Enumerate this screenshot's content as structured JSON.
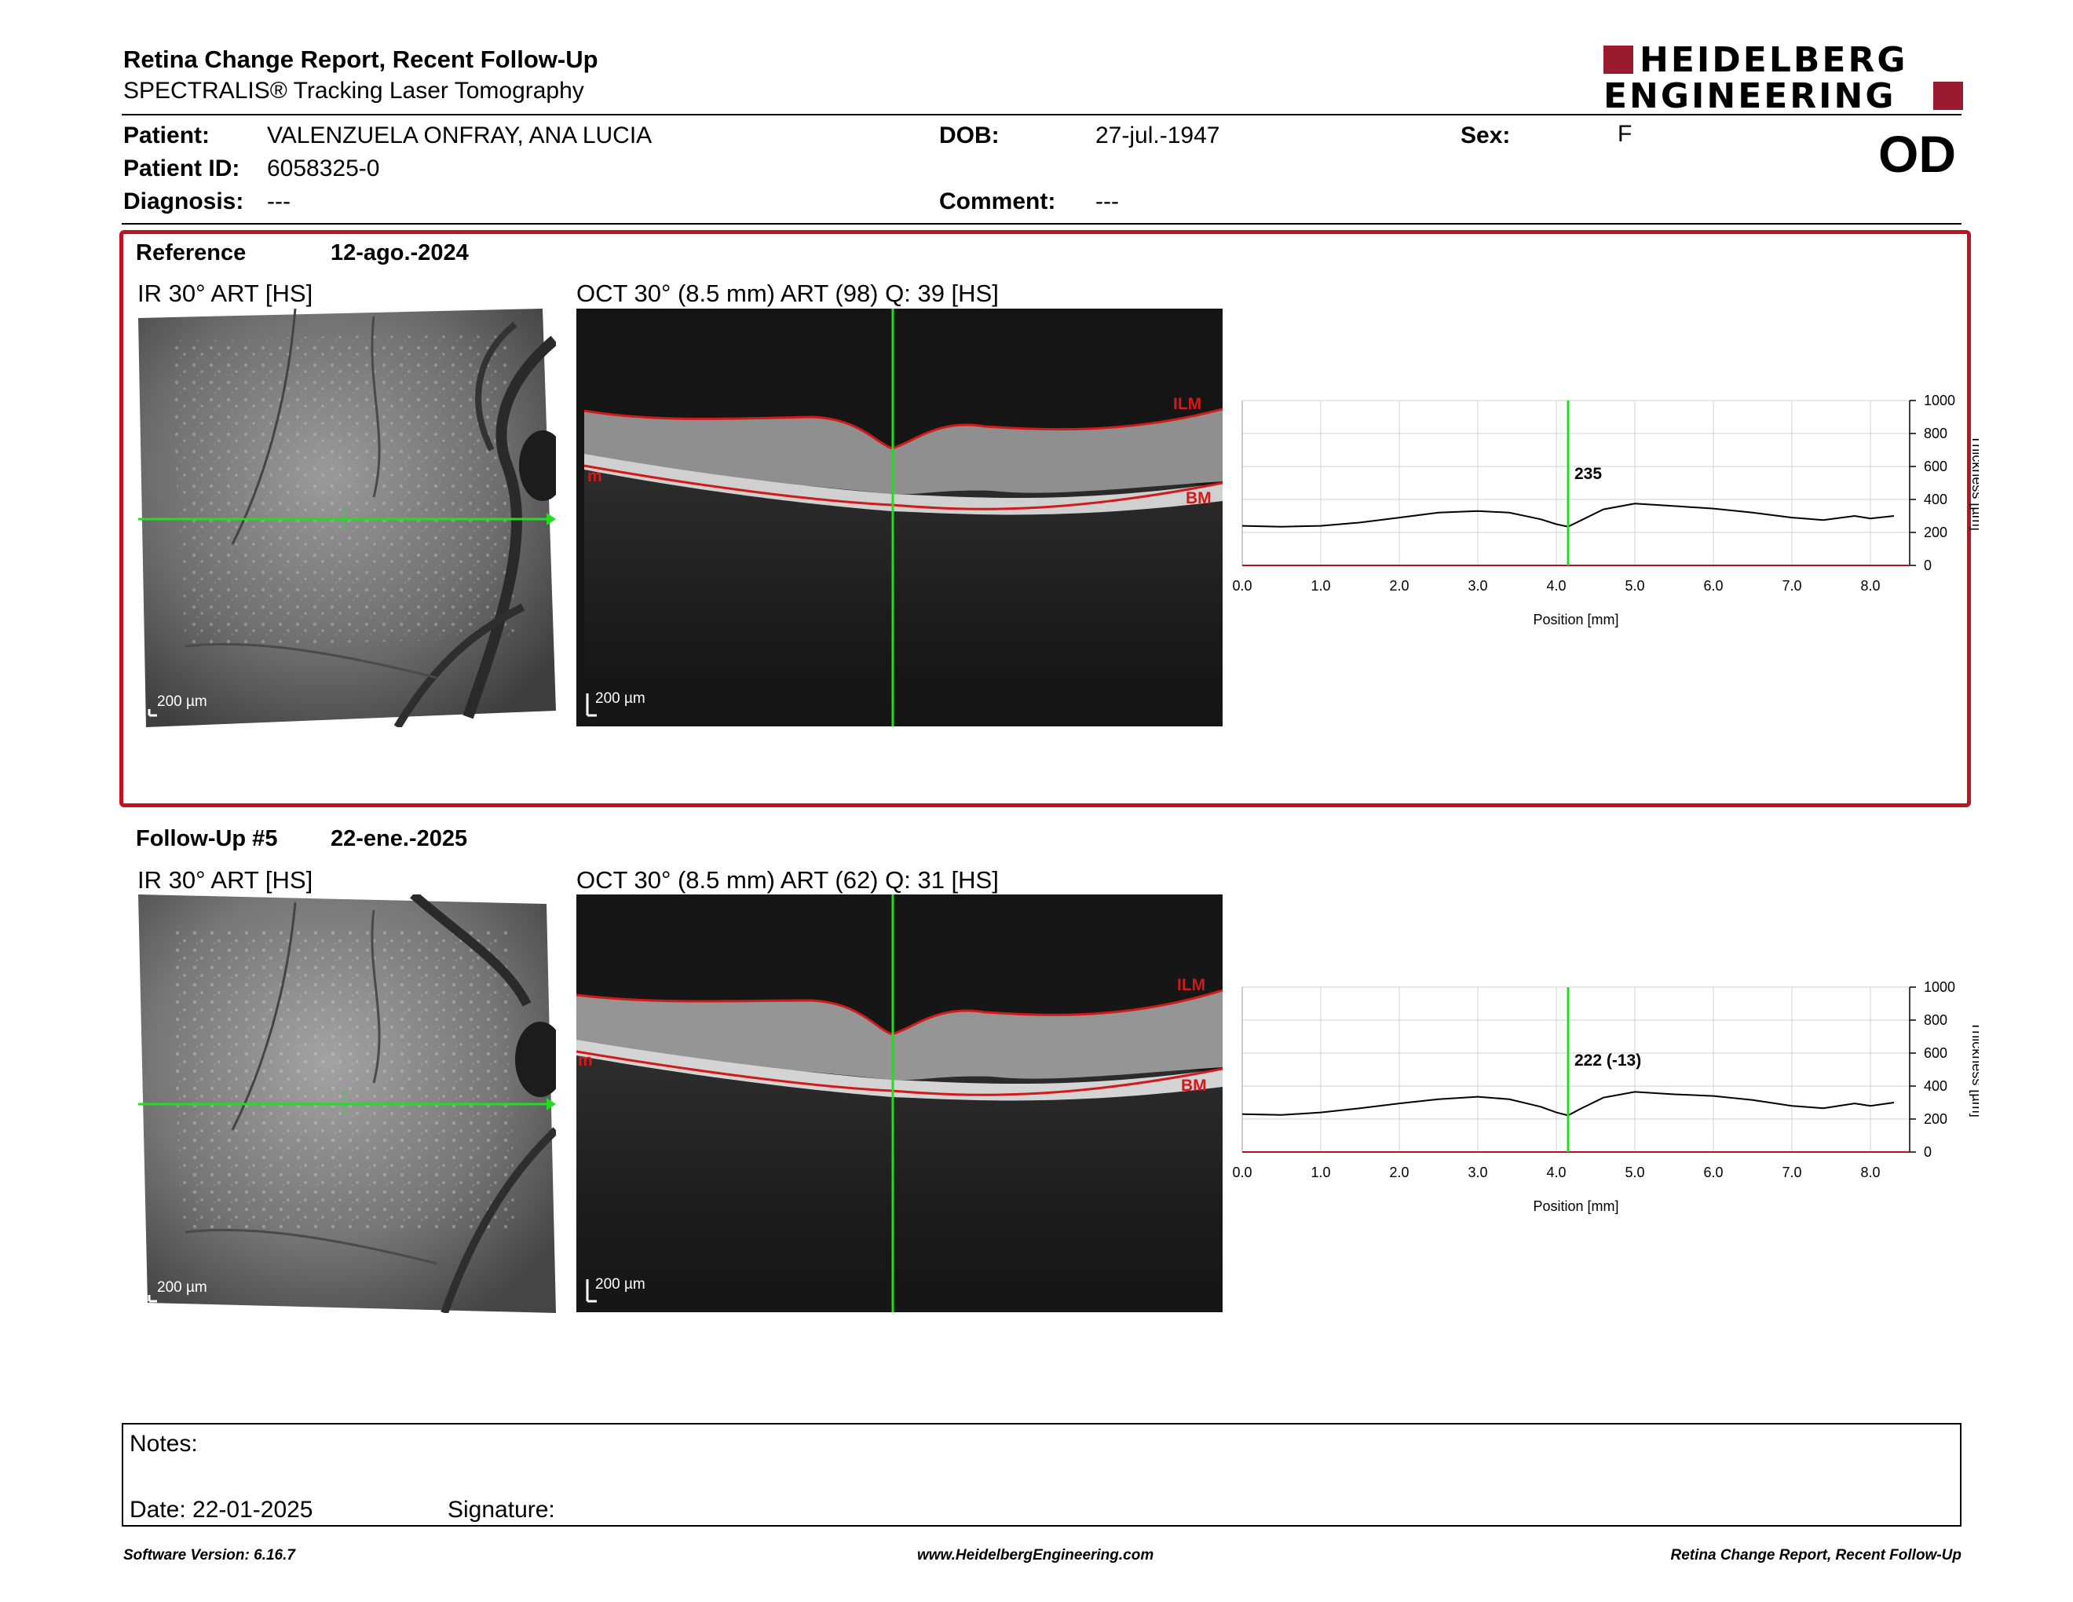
{
  "header": {
    "title": "Retina Change Report, Recent Follow-Up",
    "subtitle": "SPECTRALIS® Tracking Laser Tomography",
    "logo_line1": "HEIDELBERG",
    "logo_line2": "ENGINEERING",
    "eye": "OD"
  },
  "patient": {
    "patient_label": "Patient:",
    "patient_value": "VALENZUELA ONFRAY, ANA LUCIA",
    "id_label": "Patient ID:",
    "id_value": "6058325-0",
    "diagnosis_label": "Diagnosis:",
    "diagnosis_value": "---",
    "dob_label": "DOB:",
    "dob_value": "27-jul.-1947",
    "comment_label": "Comment:",
    "comment_value": "---",
    "sex_label": "Sex:",
    "sex_value": "F"
  },
  "reference": {
    "label": "Reference",
    "date": "12-ago.-2024",
    "ir_title": "IR 30° ART [HS]",
    "oct_title": "OCT 30° (8.5 mm) ART (98) Q: 39 [HS]",
    "scale": "200 µm",
    "ilm": "ILM",
    "bm": "BM",
    "m": "m"
  },
  "followup": {
    "label": "Follow-Up #5",
    "date": "22-ene.-2025",
    "ir_title": "IR 30° ART [HS]",
    "oct_title": "OCT 30° (8.5 mm) ART (62) Q: 31 [HS]",
    "scale": "200 µm",
    "ilm": "ILM",
    "bm": "BM",
    "m": "m"
  },
  "chart_data": [
    {
      "type": "line",
      "xlabel": "Position [mm]",
      "ylabel": "Thickness [µm]",
      "xlim": [
        0,
        8.5
      ],
      "ylim": [
        0,
        1000
      ],
      "xticks": [
        "0.0",
        "1.0",
        "2.0",
        "3.0",
        "4.0",
        "5.0",
        "6.0",
        "7.0",
        "8.0"
      ],
      "yticks": [
        "0",
        "200",
        "400",
        "600",
        "800",
        "1000"
      ],
      "marker_x": 4.15,
      "marker_label": "235",
      "grid": true,
      "series": [
        {
          "x": [
            0.0,
            0.5,
            1.0,
            1.5,
            2.0,
            2.5,
            3.0,
            3.4,
            3.8,
            4.0,
            4.15,
            4.3,
            4.6,
            5.0,
            5.5,
            6.0,
            6.5,
            7.0,
            7.4,
            7.8,
            8.0,
            8.3
          ],
          "values": [
            240,
            235,
            240,
            260,
            290,
            320,
            330,
            320,
            280,
            250,
            235,
            270,
            340,
            375,
            360,
            345,
            320,
            290,
            275,
            300,
            285,
            300
          ]
        }
      ]
    },
    {
      "type": "line",
      "xlabel": "Position [mm]",
      "ylabel": "Thickness [µm]",
      "xlim": [
        0,
        8.5
      ],
      "ylim": [
        0,
        1000
      ],
      "xticks": [
        "0.0",
        "1.0",
        "2.0",
        "3.0",
        "4.0",
        "5.0",
        "6.0",
        "7.0",
        "8.0"
      ],
      "yticks": [
        "0",
        "200",
        "400",
        "600",
        "800",
        "1000"
      ],
      "marker_x": 4.15,
      "marker_label": "222 (-13)",
      "grid": true,
      "series": [
        {
          "x": [
            0.0,
            0.5,
            1.0,
            1.5,
            2.0,
            2.5,
            3.0,
            3.4,
            3.8,
            4.0,
            4.15,
            4.3,
            4.6,
            5.0,
            5.5,
            6.0,
            6.5,
            7.0,
            7.4,
            7.8,
            8.0,
            8.3
          ],
          "values": [
            230,
            225,
            240,
            265,
            295,
            320,
            335,
            320,
            275,
            240,
            222,
            260,
            330,
            365,
            350,
            340,
            315,
            280,
            265,
            295,
            280,
            300
          ]
        }
      ]
    }
  ],
  "notes": {
    "notes_label": "Notes:",
    "date_label": "Date: 22-01-2025",
    "signature_label": "Signature:"
  },
  "footer": {
    "left": "Software Version: 6.16.7",
    "center": "www.HeidelbergEngineering.com",
    "right": "Retina Change Report, Recent Follow-Up"
  },
  "colors": {
    "accent_red": "#c0121f",
    "logo_red": "#9a1b2f",
    "scan_green": "#22dd22",
    "layer_red": "#d11a1a"
  }
}
